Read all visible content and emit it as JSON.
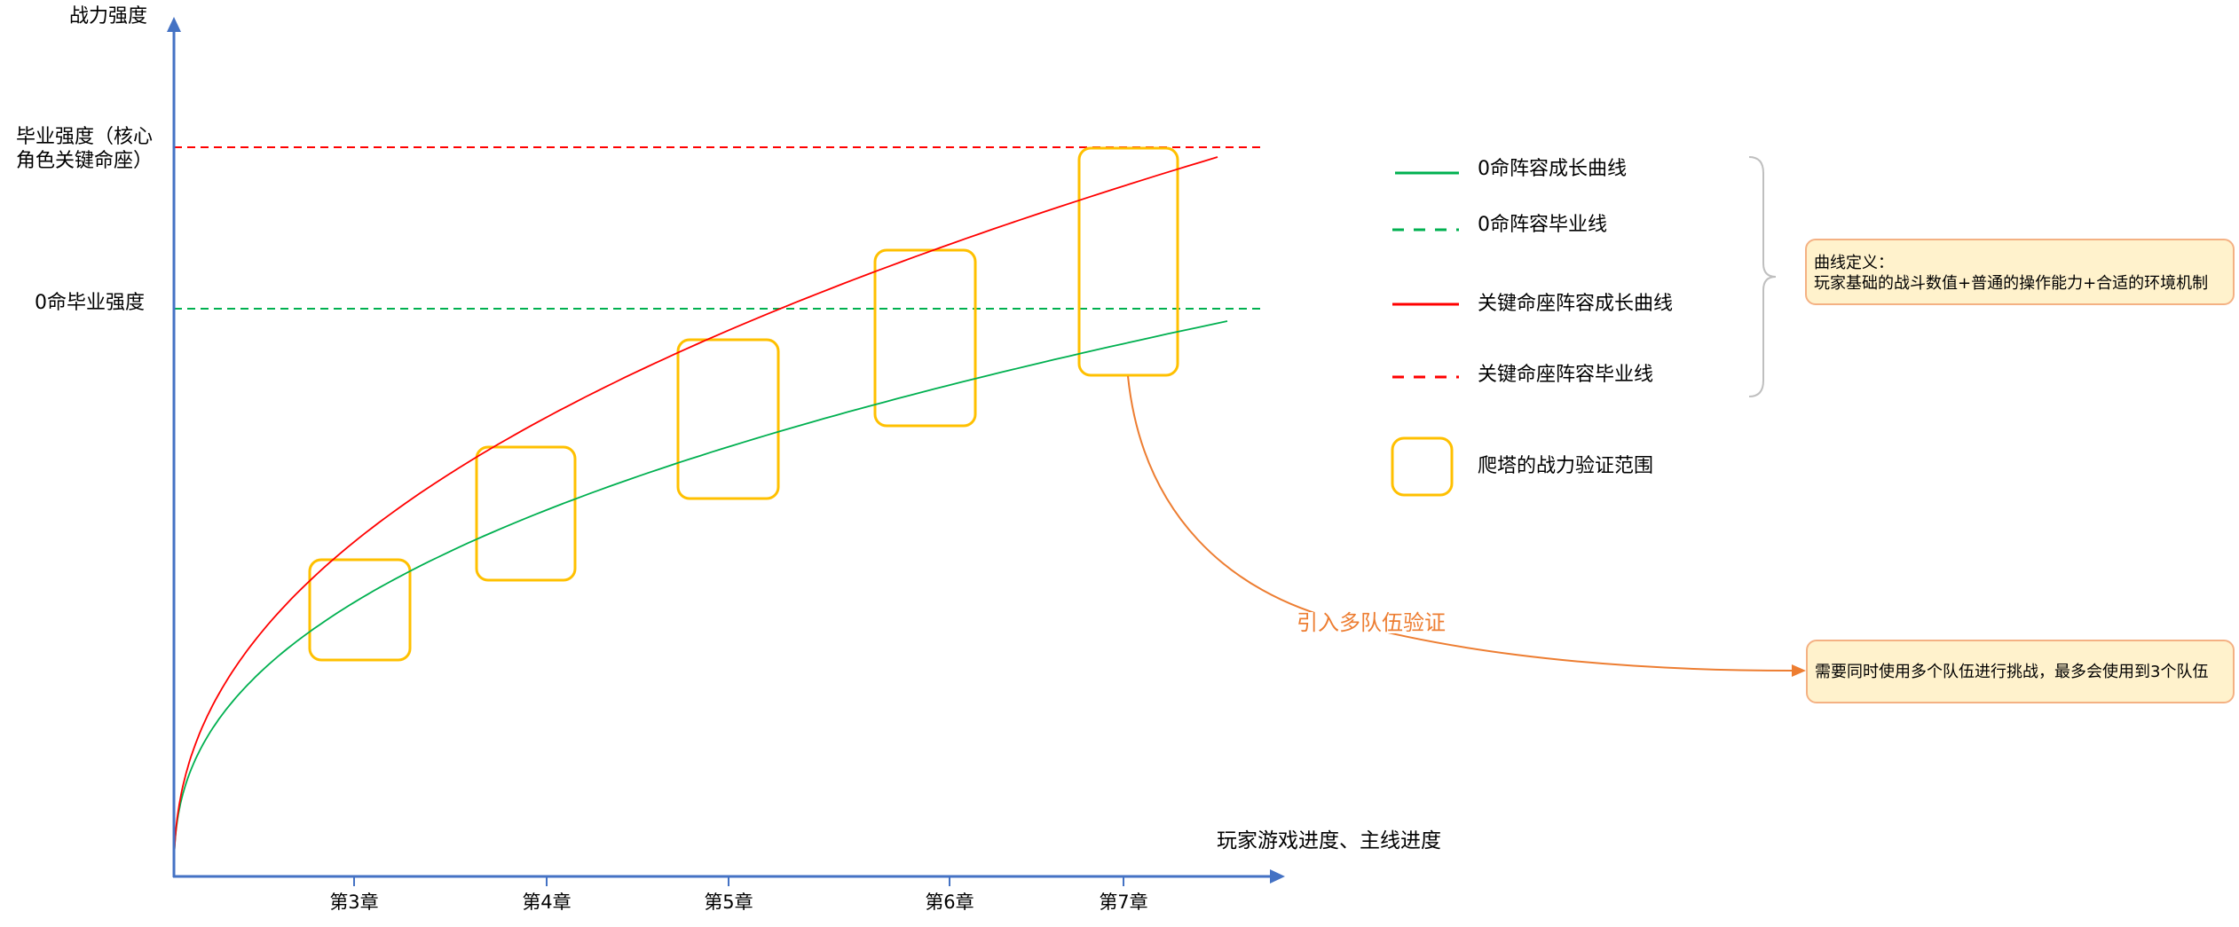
{
  "chart_data": {
    "type": "line",
    "title": "",
    "ylabel": "战力强度",
    "xlabel": "玩家游戏进度、主线进度",
    "categories": [
      "第3章",
      "第4章",
      "第5章",
      "第6章",
      "第7章"
    ],
    "y_ticks": [
      {
        "lines": [
          "毕业强度（核心",
          "角色关键命座）"
        ]
      },
      {
        "lines": [
          "0命毕业强度"
        ]
      }
    ],
    "series": [
      {
        "name": "0命阵容成长曲线",
        "color": "#00B050",
        "line": "solid"
      },
      {
        "name": "0命阵容毕业线",
        "color": "#00B050",
        "line": "dashed"
      },
      {
        "name": "关键命座阵容成长曲线",
        "color": "#FF0000",
        "line": "solid"
      },
      {
        "name": "关键命座阵容毕业线",
        "color": "#FF0000",
        "line": "dashed"
      }
    ],
    "ranges": {
      "name": "爬塔的战力验证范围",
      "color": "#FFC000"
    },
    "legend": "right",
    "grid": false
  },
  "annotations": {
    "curve_definition": {
      "heading": "曲线定义：",
      "text": "玩家基础的战斗数值+普通的操作能力+合适的环境机制"
    },
    "multi_team": {
      "label": "引入多队伍验证",
      "text": "需要同时使用多个队伍进行挑战，最多会使用到3个队伍"
    }
  },
  "colors": {
    "axis": "#4472C4",
    "callout": "#ED7D31",
    "note_fill": "#FFF2CC",
    "note_border": "#F4B183",
    "brace": "#BFBFBF"
  }
}
